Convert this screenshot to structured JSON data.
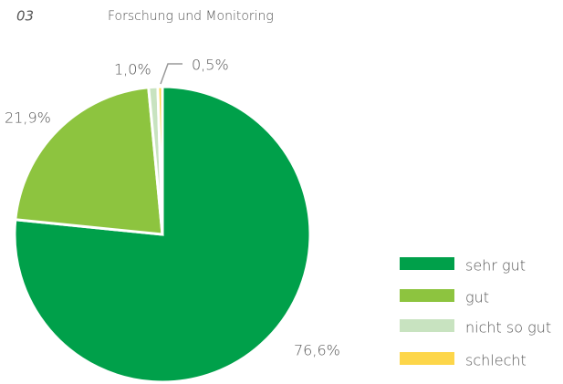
{
  "header": {
    "number": "03",
    "title": "Forschung und Monitoring"
  },
  "chart_data": {
    "type": "pie",
    "categories": [
      "sehr gut",
      "gut",
      "nicht so gut",
      "schlecht"
    ],
    "values": [
      76.6,
      21.9,
      1.0,
      0.5
    ],
    "value_labels": [
      "76,6%",
      "21,9%",
      "1,0%",
      "0,5%"
    ],
    "colors": [
      "#00a04a",
      "#8dc43f",
      "#c8e3c0",
      "#fdd64a"
    ],
    "legend": "right"
  }
}
